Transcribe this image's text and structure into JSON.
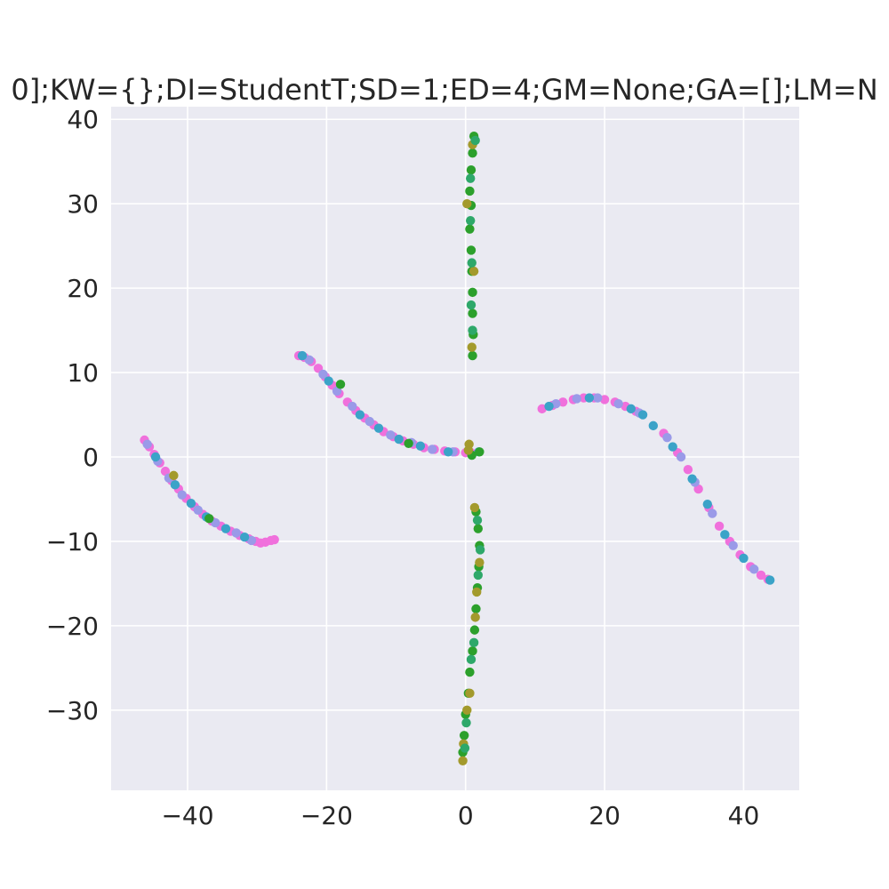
{
  "chart_data": {
    "type": "scatter",
    "title": "0];KW={};DI=StudentT;SD=1;ED=4;GM=None;GA=[];LM=N",
    "xlabel": "",
    "ylabel": "",
    "xlim": [
      -51,
      48
    ],
    "ylim": [
      -39.5,
      41.5
    ],
    "xticks": [
      -40,
      -20,
      0,
      20,
      40
    ],
    "yticks": [
      -30,
      -20,
      -10,
      0,
      10,
      20,
      30,
      40
    ],
    "xtick_labels": [
      "−40",
      "−20",
      "0",
      "20",
      "40"
    ],
    "ytick_labels": [
      "−30",
      "−20",
      "−10",
      "0",
      "10",
      "20",
      "30",
      "40"
    ],
    "grid": true,
    "background": "#EAEAF2",
    "colors": [
      "#2CA02C",
      "#3BA3C8",
      "#9A9AE8",
      "#F070DC",
      "#A39A2C",
      "#2EA86A"
    ],
    "series": [
      {
        "color_index": 3,
        "points": [
          [
            -46.2,
            2.0
          ],
          [
            -45.5,
            1.2
          ],
          [
            -44.8,
            0.3
          ],
          [
            -44.0,
            -0.7
          ],
          [
            -43.2,
            -1.7
          ],
          [
            -42.3,
            -2.8
          ],
          [
            -41.3,
            -3.8
          ],
          [
            -40.2,
            -4.9
          ],
          [
            -39.0,
            -5.9
          ],
          [
            -37.8,
            -6.8
          ],
          [
            -36.5,
            -7.6
          ],
          [
            -35.2,
            -8.2
          ],
          [
            -33.8,
            -8.8
          ],
          [
            -32.5,
            -9.3
          ],
          [
            -31.2,
            -9.7
          ],
          [
            -30.2,
            -10.0
          ],
          [
            -29.5,
            -10.2
          ],
          [
            -28.8,
            -10.1
          ],
          [
            -28.0,
            -9.9
          ],
          [
            -27.5,
            -9.8
          ],
          [
            -24.0,
            12.0
          ],
          [
            -23.2,
            11.8
          ],
          [
            -22.2,
            11.3
          ],
          [
            -21.2,
            10.5
          ],
          [
            -20.2,
            9.5
          ],
          [
            -19.2,
            8.5
          ],
          [
            -18.2,
            7.5
          ],
          [
            -17.0,
            6.5
          ],
          [
            -15.8,
            5.5
          ],
          [
            -14.5,
            4.6
          ],
          [
            -13.2,
            3.8
          ],
          [
            -11.8,
            3.0
          ],
          [
            -10.4,
            2.4
          ],
          [
            -9.0,
            1.9
          ],
          [
            -7.5,
            1.5
          ],
          [
            -6.0,
            1.1
          ],
          [
            -4.5,
            0.9
          ],
          [
            -3.0,
            0.7
          ],
          [
            -1.5,
            0.6
          ],
          [
            0.0,
            0.5
          ],
          [
            0.8,
            0.5
          ],
          [
            11.0,
            5.7
          ],
          [
            12.5,
            6.1
          ],
          [
            14.0,
            6.5
          ],
          [
            15.5,
            6.8
          ],
          [
            17.0,
            7.0
          ],
          [
            18.5,
            7.0
          ],
          [
            20.0,
            6.8
          ],
          [
            21.5,
            6.5
          ],
          [
            23.0,
            6.0
          ],
          [
            24.5,
            5.4
          ],
          [
            28.5,
            2.8
          ],
          [
            30.5,
            0.5
          ],
          [
            32.0,
            -1.5
          ],
          [
            33.5,
            -3.8
          ],
          [
            35.0,
            -6.0
          ],
          [
            36.5,
            -8.2
          ],
          [
            38.0,
            -10.0
          ],
          [
            39.5,
            -11.6
          ],
          [
            41.0,
            -13.0
          ],
          [
            42.5,
            -14.0
          ],
          [
            43.5,
            -14.5
          ]
        ]
      },
      {
        "color_index": 2,
        "points": [
          [
            -45.8,
            1.5
          ],
          [
            -44.3,
            -0.5
          ],
          [
            -42.7,
            -2.5
          ],
          [
            -40.8,
            -4.5
          ],
          [
            -38.5,
            -6.3
          ],
          [
            -36.0,
            -7.8
          ],
          [
            -33.0,
            -9.0
          ],
          [
            -30.8,
            -9.9
          ],
          [
            -22.5,
            11.5
          ],
          [
            -20.5,
            9.8
          ],
          [
            -18.5,
            7.8
          ],
          [
            -16.3,
            6.0
          ],
          [
            -13.8,
            4.2
          ],
          [
            -10.8,
            2.6
          ],
          [
            -7.8,
            1.7
          ],
          [
            -4.8,
            0.9
          ],
          [
            -1.8,
            0.6
          ],
          [
            13.0,
            6.3
          ],
          [
            16.0,
            6.9
          ],
          [
            19.0,
            7.0
          ],
          [
            22.0,
            6.3
          ],
          [
            25.0,
            5.2
          ],
          [
            29.0,
            2.3
          ],
          [
            31.0,
            0.0
          ],
          [
            33.0,
            -3.0
          ],
          [
            35.5,
            -6.7
          ],
          [
            38.5,
            -10.5
          ],
          [
            41.5,
            -13.3
          ]
        ]
      },
      {
        "color_index": 1,
        "points": [
          [
            -44.6,
            0.0
          ],
          [
            -41.8,
            -3.3
          ],
          [
            -39.5,
            -5.5
          ],
          [
            -37.3,
            -7.1
          ],
          [
            -34.5,
            -8.5
          ],
          [
            -31.8,
            -9.5
          ],
          [
            -23.5,
            12.0
          ],
          [
            -19.7,
            9.0
          ],
          [
            -15.2,
            5.0
          ],
          [
            -12.5,
            3.4
          ],
          [
            -9.6,
            2.1
          ],
          [
            -6.5,
            1.3
          ],
          [
            -2.5,
            0.6
          ],
          [
            1.9,
            0.6
          ],
          [
            12.0,
            6.0
          ],
          [
            17.8,
            7.0
          ],
          [
            23.8,
            5.7
          ],
          [
            25.5,
            5.0
          ],
          [
            27.0,
            3.7
          ],
          [
            29.8,
            1.2
          ],
          [
            32.6,
            -2.6
          ],
          [
            34.8,
            -5.6
          ],
          [
            37.3,
            -9.2
          ],
          [
            40.0,
            -12.0
          ],
          [
            43.8,
            -14.6
          ]
        ]
      },
      {
        "color_index": 0,
        "points": [
          [
            -36.9,
            -7.3
          ],
          [
            -18.0,
            8.6
          ],
          [
            -8.2,
            1.6
          ],
          [
            0.9,
            0.2
          ],
          [
            2.0,
            0.6
          ],
          [
            1.2,
            38.0
          ],
          [
            1.0,
            36.0
          ],
          [
            0.8,
            34.0
          ],
          [
            0.6,
            31.5
          ],
          [
            0.8,
            29.8
          ],
          [
            0.6,
            27.0
          ],
          [
            0.8,
            24.5
          ],
          [
            0.9,
            22.0
          ],
          [
            1.0,
            19.5
          ],
          [
            1.0,
            17.0
          ],
          [
            1.1,
            14.5
          ],
          [
            1.0,
            12.0
          ],
          [
            1.5,
            -6.5
          ],
          [
            1.8,
            -8.5
          ],
          [
            2.0,
            -10.5
          ],
          [
            1.9,
            -13.0
          ],
          [
            1.7,
            -15.5
          ],
          [
            1.5,
            -18.0
          ],
          [
            1.3,
            -20.5
          ],
          [
            1.0,
            -23.0
          ],
          [
            0.6,
            -25.5
          ],
          [
            0.4,
            -28.0
          ],
          [
            0.0,
            -30.5
          ],
          [
            -0.2,
            -33.0
          ],
          [
            -0.4,
            -35.0
          ]
        ]
      },
      {
        "color_index": 4,
        "points": [
          [
            -42.0,
            -2.2
          ],
          [
            0.5,
            1.5
          ],
          [
            0.4,
            0.8
          ],
          [
            1.0,
            37.0
          ],
          [
            0.2,
            30.0
          ],
          [
            1.2,
            22.0
          ],
          [
            0.9,
            13.0
          ],
          [
            1.3,
            -6.0
          ],
          [
            2.0,
            -12.5
          ],
          [
            1.6,
            -16.0
          ],
          [
            1.4,
            -19.0
          ],
          [
            0.6,
            -28.0
          ],
          [
            0.2,
            -30.0
          ],
          [
            -0.3,
            -34.0
          ],
          [
            -0.4,
            -36.0
          ]
        ]
      },
      {
        "color_index": 5,
        "points": [
          [
            1.4,
            37.5
          ],
          [
            0.7,
            33.0
          ],
          [
            0.7,
            28.0
          ],
          [
            0.9,
            23.0
          ],
          [
            0.8,
            18.0
          ],
          [
            1.0,
            15.0
          ],
          [
            1.7,
            -7.5
          ],
          [
            2.1,
            -11.0
          ],
          [
            1.8,
            -14.0
          ],
          [
            1.2,
            -22.0
          ],
          [
            0.8,
            -24.0
          ],
          [
            0.1,
            -31.5
          ],
          [
            -0.1,
            -34.5
          ]
        ]
      }
    ]
  }
}
